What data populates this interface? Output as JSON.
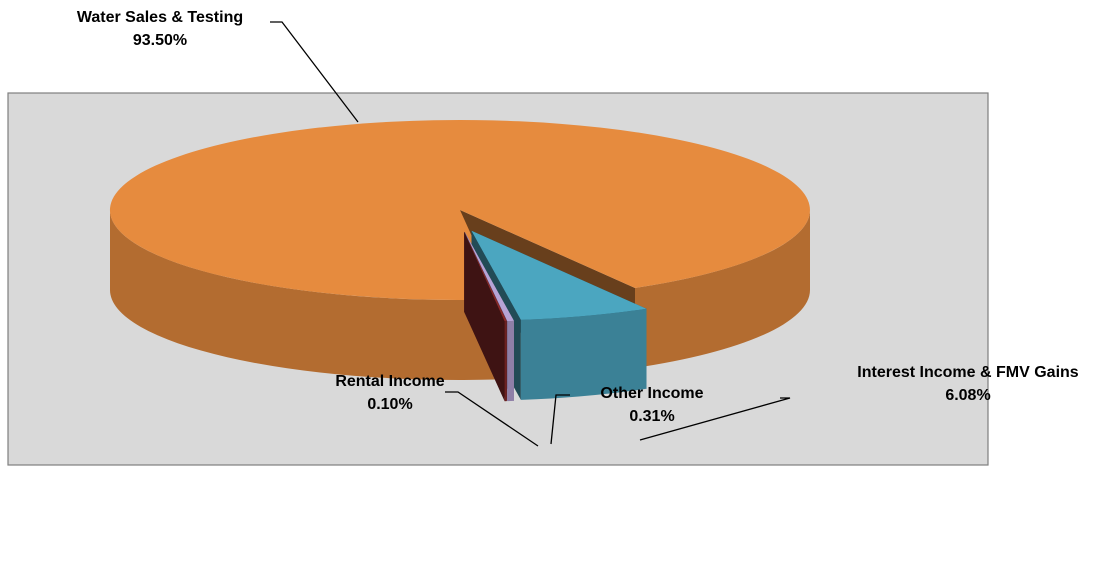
{
  "chart_data": {
    "type": "pie3d",
    "categories": [
      "Interest Income & FMV Gains",
      "Other Income",
      "Rental Income",
      "Water Sales & Testing"
    ],
    "values": [
      6.08,
      0.31,
      0.1,
      93.5
    ],
    "value_labels": [
      "6.08%",
      "0.31%",
      "0.10%",
      "93.50%"
    ],
    "colors": [
      "#4ba6c0",
      "#b7a3d6",
      "#8a2a2a",
      "#e68b3e"
    ]
  }
}
